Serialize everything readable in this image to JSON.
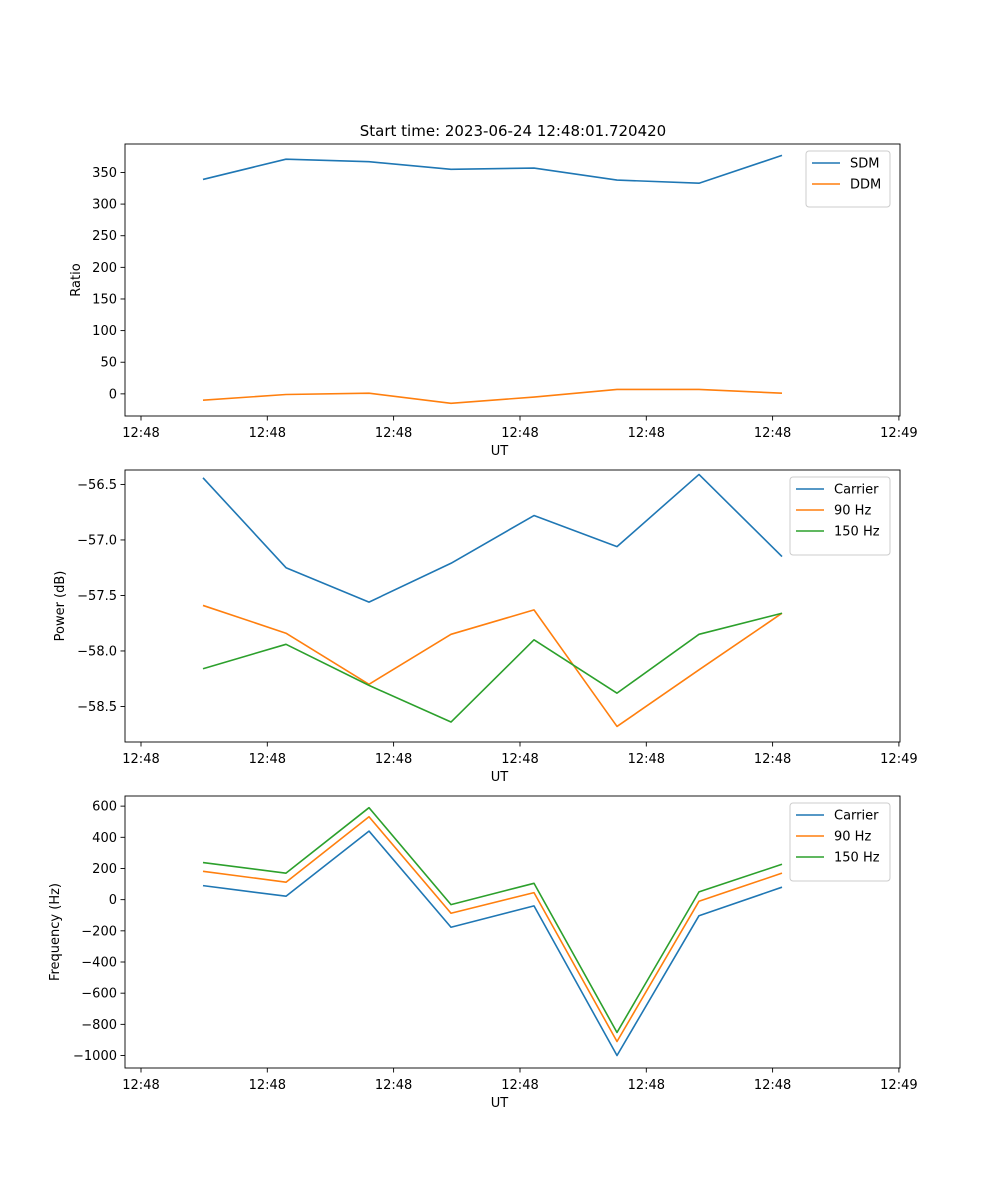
{
  "figure": {
    "title": "Start time: 2023-06-24 12:48:01.720420"
  },
  "colors": {
    "series_1": "#1f77b4",
    "series_2": "#ff7f0e",
    "series_3": "#2ca02c"
  },
  "chart_data": [
    {
      "type": "line",
      "title": "Start time: 2023-06-24 12:48:01.720420",
      "xlabel": "UT",
      "ylabel": "Ratio",
      "x_tick_labels": [
        "12:48",
        "12:48",
        "12:48",
        "12:48",
        "12:48",
        "12:48",
        "12:48"
      ],
      "x_last_tick_label": "12:49",
      "y_ticks": [
        0,
        50,
        100,
        150,
        200,
        250,
        300,
        350
      ],
      "ylim": [
        -35,
        395
      ],
      "legend_position": "upper right",
      "grid": false,
      "series": [
        {
          "name": "SDM",
          "color": "#1f77b4",
          "values": [
            339,
            371,
            367,
            355,
            357,
            338,
            333,
            377
          ]
        },
        {
          "name": "DDM",
          "color": "#ff7f0e",
          "values": [
            -10,
            -1,
            1,
            -15,
            -5,
            7,
            7,
            1
          ]
        }
      ]
    },
    {
      "type": "line",
      "title": "",
      "xlabel": "UT",
      "ylabel": "Power (dB)",
      "x_tick_labels": [
        "12:48",
        "12:48",
        "12:48",
        "12:48",
        "12:48",
        "12:48",
        "12:48"
      ],
      "x_last_tick_label": "12:49",
      "y_ticks": [
        -58.5,
        -58.0,
        -57.5,
        -57.0,
        -56.5
      ],
      "y_tick_labels": [
        "−58.5",
        "−58.0",
        "−57.5",
        "−57.0",
        "−56.5"
      ],
      "ylim": [
        -58.82,
        -56.37
      ],
      "legend_position": "upper right",
      "grid": false,
      "series": [
        {
          "name": "Carrier",
          "color": "#1f77b4",
          "values": [
            -56.44,
            -57.25,
            -57.56,
            -57.21,
            -56.78,
            -57.06,
            -56.41,
            -57.15
          ]
        },
        {
          "name": "90 Hz",
          "color": "#ff7f0e",
          "values": [
            -57.59,
            -57.84,
            -58.3,
            -57.85,
            -57.63,
            -58.68,
            -58.17,
            -57.66
          ]
        },
        {
          "name": "150 Hz",
          "color": "#2ca02c",
          "values": [
            -58.16,
            -57.94,
            -58.31,
            -58.64,
            -57.9,
            -58.38,
            -57.85,
            -57.66
          ]
        }
      ]
    },
    {
      "type": "line",
      "title": "",
      "xlabel": "UT",
      "ylabel": "Frequency (Hz)",
      "x_tick_labels": [
        "12:48",
        "12:48",
        "12:48",
        "12:48",
        "12:48",
        "12:48",
        "12:48"
      ],
      "x_last_tick_label": "12:49",
      "y_ticks": [
        -1000,
        -800,
        -600,
        -400,
        -200,
        0,
        200,
        400,
        600
      ],
      "y_tick_labels": [
        "−1000",
        "−800",
        "−600",
        "−400",
        "−200",
        "0",
        "200",
        "400",
        "600"
      ],
      "ylim": [
        -1080,
        665
      ],
      "legend_position": "upper right",
      "grid": false,
      "series": [
        {
          "name": "Carrier",
          "color": "#1f77b4",
          "values": [
            90,
            22,
            440,
            -177,
            -40,
            -1000,
            -103,
            80
          ]
        },
        {
          "name": "90 Hz",
          "color": "#ff7f0e",
          "values": [
            182,
            112,
            532,
            -87,
            45,
            -910,
            -10,
            170
          ]
        },
        {
          "name": "150 Hz",
          "color": "#2ca02c",
          "values": [
            238,
            170,
            590,
            -32,
            105,
            -852,
            50,
            227
          ]
        }
      ]
    }
  ]
}
